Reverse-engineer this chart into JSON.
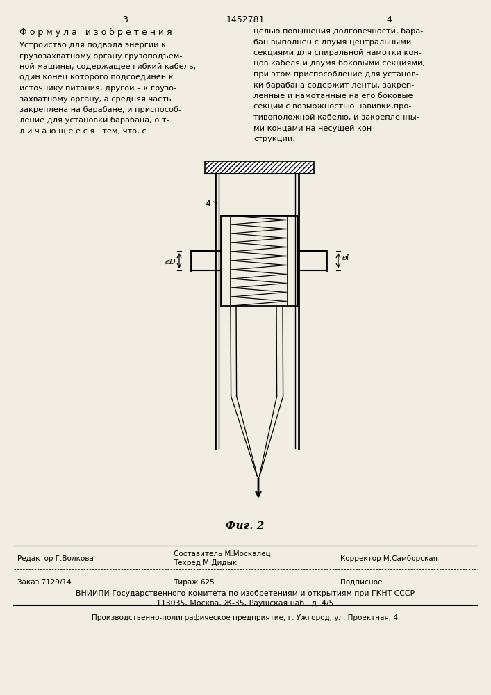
{
  "page_number_left": "3",
  "page_number_center": "1452781",
  "page_number_right": "4",
  "section_title": "Ф о р м у л а   и з о б р е т е н и я",
  "left_col_lines": [
    "Устройство для подвода энергии к",
    "грузозахватному органу грузоподъем-",
    "ной машины, содержащее гибкий кабель,",
    "один конец которого подсоединен к",
    "источнику питания, другой – к грузо-",
    "захватному органу, а средняя часть",
    "закреплена на барабане, и приспособ-",
    "ление для установки барабана, о т-",
    "л и ч а ю щ е е с я   тем, что, с"
  ],
  "right_col_lines": [
    "целью повышения долговечности, бара-",
    "бан выполнен с двумя центральными",
    "секциями для спиральной намотки кон-",
    "цов кабеля и двумя боковыми секциями,",
    "при этом приспособление для установ-",
    "ки барабана содержит ленты, закреп-",
    "ленные и намотанные на его боковые",
    "секции с возможностью навивки,про-",
    "тивоположной кабелю, и закрепленны-",
    "ми концами на несущей кон-",
    "струкции."
  ],
  "fig_label": "Фиг. 2",
  "footer_editor": "Редактор Г.Волкова",
  "footer_composer": "Составитель М.Москалец",
  "footer_techr": "Техред М.Дидык",
  "footer_corrector": "Корректор М.Самборская",
  "footer_order": "Заказ 7129/14",
  "footer_circulation": "Тираж 625",
  "footer_subscription": "Подписное",
  "footer_org1": "ВНИИПИ Государственного комитета по изобретениям и открытиям при ГКНТ СССР",
  "footer_org2": "113035, Москва, Ж-35, Раушская наб., д. 4/5",
  "footer_printer": "Производственно-полиграфическое предприятие, г. Ужгород, ул. Проектная, 4",
  "bg_color": "#f2ede3"
}
